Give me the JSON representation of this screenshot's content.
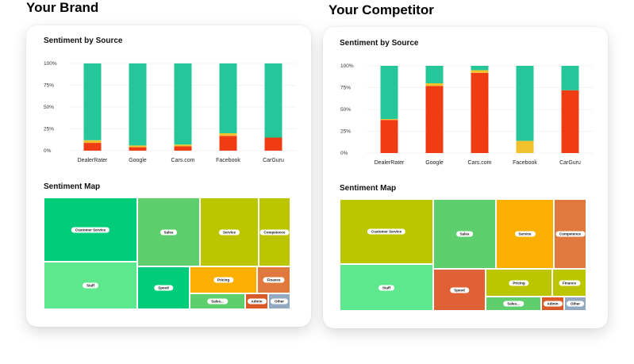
{
  "panels": [
    {
      "title": "Your Brand",
      "source_heading": "Sentiment by Source",
      "map_heading": "Sentiment Map",
      "treemap": [
        {
          "label": "Customer Service",
          "color": "#00cc7a",
          "rect": [
            0,
            0,
            118,
            81
          ]
        },
        {
          "label": "Sales",
          "color": "#5ecf6c",
          "rect": [
            118,
            0,
            79,
            87
          ]
        },
        {
          "label": "Service",
          "color": "#bcc600",
          "rect": [
            197,
            0,
            74,
            87
          ]
        },
        {
          "label": "Competence",
          "color": "#bcc600",
          "rect": [
            271,
            0,
            40,
            87
          ]
        },
        {
          "label": "Staff",
          "color": "#5ee88e",
          "rect": [
            0,
            81,
            118,
            60
          ]
        },
        {
          "label": "Speed",
          "color": "#00cc7a",
          "rect": [
            118,
            87,
            66,
            54
          ]
        },
        {
          "label": "Pricing",
          "color": "#fbaf00",
          "rect": [
            184,
            87,
            85,
            34
          ]
        },
        {
          "label": "Finance",
          "color": "#e0793d",
          "rect": [
            269,
            87,
            42,
            34
          ]
        },
        {
          "label": "Sales...",
          "color": "#5ecf6c",
          "rect": [
            184,
            121,
            70,
            20
          ]
        },
        {
          "label": "Admin",
          "color": "#d95a27",
          "rect": [
            254,
            121,
            29,
            20
          ]
        },
        {
          "label": "Other",
          "color": "#93a9c2",
          "rect": [
            283,
            121,
            28,
            20
          ]
        }
      ]
    },
    {
      "title": "Your Competitor",
      "source_heading": "Sentiment by Source",
      "map_heading": "Sentiment Map",
      "treemap": [
        {
          "label": "Customer Service",
          "color": "#bcc600",
          "rect": [
            0,
            0,
            118,
            82
          ]
        },
        {
          "label": "Sales",
          "color": "#5ecf6c",
          "rect": [
            118,
            0,
            79,
            88
          ]
        },
        {
          "label": "Service",
          "color": "#fbaf00",
          "rect": [
            197,
            0,
            73,
            88
          ]
        },
        {
          "label": "Competence",
          "color": "#e0793d",
          "rect": [
            270,
            0,
            41,
            88
          ]
        },
        {
          "label": "Staff",
          "color": "#5ee88e",
          "rect": [
            0,
            82,
            118,
            59
          ]
        },
        {
          "label": "Speed",
          "color": "#e06135",
          "rect": [
            118,
            88,
            66,
            53
          ]
        },
        {
          "label": "Pricing",
          "color": "#bcc600",
          "rect": [
            184,
            88,
            84,
            35
          ]
        },
        {
          "label": "Finance",
          "color": "#bcc600",
          "rect": [
            268,
            88,
            43,
            35
          ]
        },
        {
          "label": "Sales...",
          "color": "#5ecf6c",
          "rect": [
            184,
            123,
            70,
            18
          ]
        },
        {
          "label": "Admin",
          "color": "#d95a27",
          "rect": [
            254,
            123,
            29,
            18
          ]
        },
        {
          "label": "Other",
          "color": "#93a9c2",
          "rect": [
            283,
            123,
            28,
            18
          ]
        }
      ]
    }
  ],
  "chart_data": [
    {
      "type": "bar",
      "title": "Sentiment by Source",
      "categories": [
        "DealerRater",
        "Google",
        "Cars.com",
        "Facebook",
        "CarGuru"
      ],
      "yticks": [
        "0%",
        "25%",
        "50%",
        "75%",
        "100%"
      ],
      "ylim": [
        0,
        100
      ],
      "stacked": true,
      "series": [
        {
          "color": "#f03c14",
          "values": [
            9,
            4,
            5,
            17,
            15
          ]
        },
        {
          "color": "#f2c12e",
          "values": [
            3,
            2,
            2,
            3,
            0
          ]
        },
        {
          "color": "#25c79a",
          "values": [
            88,
            94,
            93,
            80,
            85
          ]
        }
      ]
    },
    {
      "type": "bar",
      "title": "Sentiment by Source",
      "categories": [
        "DealerRater",
        "Google",
        "Cars.com",
        "Facebook",
        "CarGuru"
      ],
      "yticks": [
        "0%",
        "25%",
        "50%",
        "75%",
        "100%"
      ],
      "ylim": [
        0,
        100
      ],
      "stacked": true,
      "series": [
        {
          "color": "#f03c14",
          "values": [
            38,
            77,
            92,
            0,
            72
          ]
        },
        {
          "color": "#f2c12e",
          "values": [
            1,
            3,
            3,
            14,
            0
          ]
        },
        {
          "color": "#25c79a",
          "values": [
            61,
            20,
            5,
            86,
            28
          ]
        }
      ]
    }
  ]
}
